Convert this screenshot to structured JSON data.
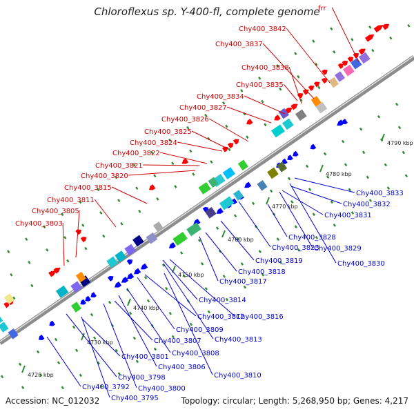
{
  "title": "Chloroflexus sp. Y-400-fl, complete genome",
  "footer": {
    "accession": "Accession: NC_012032",
    "summary": "Topology: circular; Length: 5,268,950 bp; Genes: 4,217"
  },
  "colors": {
    "forward_strand_label": "#cc0000",
    "reverse_strand_label": "#0000cc",
    "forward_gene": "#ff0000",
    "reverse_gene": "#0000ff",
    "axis": "#8c8c8c",
    "tick": "#2e8b2e"
  },
  "ticks": [
    "4720 kbp",
    "4730 kbp",
    "4740 kbp",
    "4750 kbp",
    "4760 kbp",
    "4770 kbp",
    "4780 kbp",
    "4790 kbp"
  ],
  "labels_top": [
    "frr",
    "Chy400_3842",
    "Chy400_3837",
    "Chy400_3838",
    "Chy400_3835",
    "Chy400_3834",
    "Chy400_3827",
    "Chy400_3826",
    "Chy400_3825",
    "Chy400_3824",
    "Chy400_3822",
    "Chy400_3821",
    "Chy400_3820",
    "Chy400_3815",
    "Chy400_3811",
    "Chy400_3805",
    "Chy400_3803"
  ],
  "labels_bottom": [
    "Chy400_3833",
    "Chy400_3832",
    "Chy400_3831",
    "Chy400_3828",
    "Chy400_3829",
    "Chy400_3830",
    "Chy400_3823",
    "Chy400_3819",
    "Chy400_3818",
    "Chy400_3817",
    "Chy400_3814",
    "Chy400_3812",
    "Chy400_3816",
    "Chy400_3809",
    "Chy400_3813",
    "Chy400_3807",
    "Chy400_3808",
    "Chy400_3801",
    "Chy400_3806",
    "Chy400_3810",
    "Chy400_3798",
    "Chy400_3800",
    "Chy400_3792",
    "Chy400_3795"
  ]
}
